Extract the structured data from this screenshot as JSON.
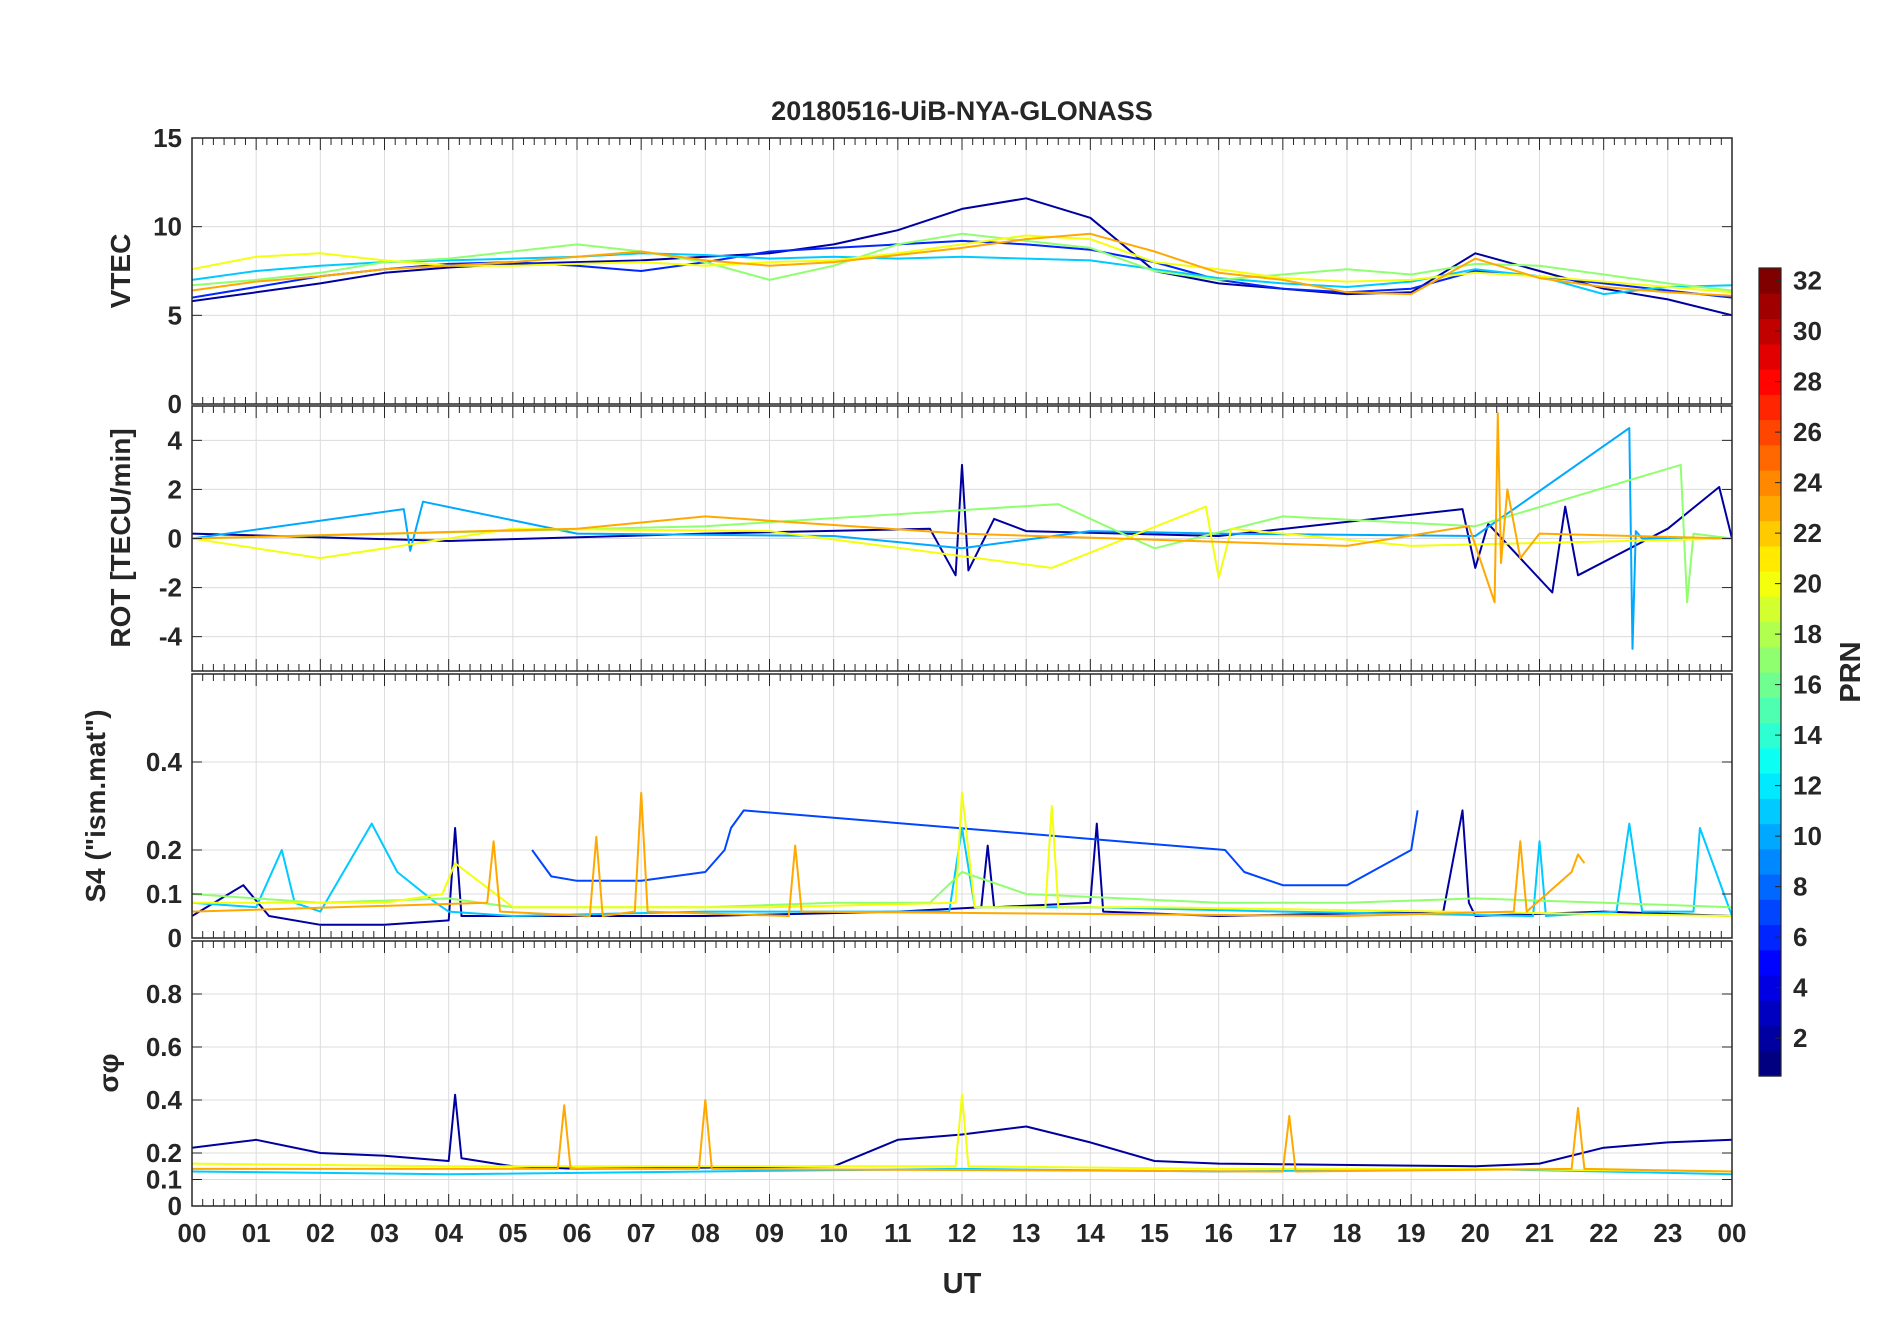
{
  "figure_title": "20180516-UiB-NYA-GLONASS",
  "chart_data": {
    "type": "line",
    "title": "20180516-UiB-NYA-GLONASS",
    "xlabel": "UT",
    "x_tick_labels": [
      "00",
      "01",
      "02",
      "03",
      "04",
      "05",
      "06",
      "07",
      "08",
      "09",
      "10",
      "11",
      "12",
      "13",
      "14",
      "15",
      "16",
      "17",
      "18",
      "19",
      "20",
      "21",
      "22",
      "23",
      "00"
    ],
    "xlim": [
      0,
      24
    ],
    "panels": [
      {
        "id": "vtec",
        "ylabel": "VTEC",
        "ylim": [
          0,
          15
        ],
        "yticks": [
          0,
          5,
          10,
          15
        ],
        "ytick_labels": [
          "0",
          "5",
          "10",
          "15"
        ],
        "series": [
          {
            "prn": 2,
            "x": [
              0,
              1,
              2,
              3,
              4,
              5,
              6,
              7,
              8,
              9,
              10,
              11,
              12,
              13,
              14,
              15,
              16,
              17,
              18,
              19,
              20,
              21,
              22,
              23,
              24
            ],
            "y": [
              5.8,
              6.3,
              6.8,
              7.4,
              7.7,
              7.9,
              8.0,
              8.1,
              8.3,
              8.5,
              9.0,
              9.8,
              11.0,
              11.6,
              10.5,
              7.5,
              6.8,
              6.5,
              6.2,
              6.3,
              8.5,
              7.5,
              6.5,
              5.9,
              5.0
            ]
          },
          {
            "prn": 6,
            "x": [
              0,
              1,
              2,
              3,
              4,
              5,
              6,
              7,
              8,
              9,
              10,
              11,
              12,
              13,
              14,
              15,
              16,
              17,
              18,
              19,
              20,
              21,
              22,
              23,
              24
            ],
            "y": [
              6.0,
              6.6,
              7.2,
              7.6,
              7.9,
              8.0,
              7.8,
              7.5,
              8.0,
              8.6,
              8.8,
              9.0,
              9.2,
              9.0,
              8.7,
              8.0,
              7.0,
              6.5,
              6.3,
              6.5,
              7.5,
              7.2,
              6.8,
              6.4,
              6.0
            ]
          },
          {
            "prn": 11,
            "x": [
              0,
              1,
              2,
              3,
              4,
              5,
              6,
              7,
              8,
              9,
              10,
              11,
              12,
              13,
              14,
              15,
              16,
              17,
              18,
              19,
              20,
              21,
              22,
              23,
              24
            ],
            "y": [
              7.0,
              7.5,
              7.8,
              8.0,
              8.1,
              8.2,
              8.3,
              8.5,
              8.4,
              8.2,
              8.3,
              8.2,
              8.3,
              8.2,
              8.1,
              7.6,
              7.1,
              6.8,
              6.6,
              6.9,
              7.6,
              7.2,
              6.2,
              6.6,
              6.7
            ]
          },
          {
            "prn": 17,
            "x": [
              0,
              1,
              2,
              3,
              4,
              5,
              6,
              7,
              8,
              9,
              10,
              11,
              12,
              13,
              14,
              15,
              16,
              17,
              18,
              19,
              20,
              21,
              22,
              23,
              24
            ],
            "y": [
              6.7,
              7.0,
              7.4,
              8.0,
              8.2,
              8.6,
              9.0,
              8.6,
              8.0,
              7.0,
              7.8,
              9.0,
              9.6,
              9.2,
              8.8,
              7.5,
              7.0,
              7.3,
              7.6,
              7.3,
              7.9,
              7.8,
              7.3,
              6.8,
              6.4
            ]
          },
          {
            "prn": 20,
            "x": [
              0,
              1,
              2,
              3,
              4,
              5,
              6,
              7,
              8,
              9,
              10,
              11,
              12,
              13,
              14,
              15,
              16,
              17,
              18,
              19,
              20,
              21,
              22,
              23,
              24
            ],
            "y": [
              7.6,
              8.3,
              8.5,
              8.1,
              7.8,
              7.8,
              7.9,
              8.0,
              7.8,
              8.0,
              8.1,
              8.5,
              9.0,
              9.5,
              9.3,
              8.0,
              7.6,
              7.1,
              6.9,
              7.0,
              7.4,
              7.2,
              6.9,
              6.6,
              6.3
            ]
          },
          {
            "prn": 23,
            "x": [
              0,
              1,
              2,
              3,
              4,
              5,
              6,
              7,
              8,
              9,
              10,
              11,
              12,
              13,
              14,
              15,
              16,
              17,
              18,
              19,
              20,
              21,
              22,
              23,
              24
            ],
            "y": [
              6.4,
              6.9,
              7.2,
              7.6,
              7.8,
              8.0,
              8.3,
              8.6,
              8.1,
              7.8,
              8.0,
              8.4,
              8.8,
              9.3,
              9.6,
              8.6,
              7.4,
              7.0,
              6.3,
              6.2,
              8.2,
              7.1,
              6.6,
              6.3,
              6.1
            ]
          }
        ]
      },
      {
        "id": "rot",
        "ylabel": "ROT [TECU/min]",
        "ylim": [
          -5.4,
          5.4
        ],
        "yticks": [
          -4,
          -2,
          0,
          2,
          4
        ],
        "ytick_labels": [
          "-4",
          "-2",
          "0",
          "2",
          "4"
        ],
        "series": [
          {
            "prn": 2,
            "x": [
              0,
              4,
              8,
              11.5,
              11.9,
              12.0,
              12.1,
              12.5,
              13,
              16,
              19.8,
              20.0,
              20.2,
              21.2,
              21.4,
              21.6,
              23,
              23.8,
              24
            ],
            "y": [
              0.2,
              -0.1,
              0.2,
              0.4,
              -1.5,
              3.0,
              -1.3,
              0.8,
              0.3,
              0.1,
              1.2,
              -1.2,
              0.6,
              -2.2,
              1.3,
              -1.5,
              0.4,
              2.1,
              0
            ]
          },
          {
            "prn": 10,
            "x": [
              0,
              3.3,
              3.4,
              3.6,
              6,
              10,
              12,
              14,
              16,
              20,
              22.4,
              22.45,
              22.5,
              22.6,
              24
            ],
            "y": [
              0,
              1.2,
              -0.5,
              1.5,
              0.2,
              0.1,
              -0.4,
              0.3,
              0.2,
              0.1,
              4.5,
              -4.5,
              0.3,
              0,
              0
            ]
          },
          {
            "prn": 17,
            "x": [
              0,
              8,
              13.5,
              15,
              17,
              20,
              23.2,
              23.3,
              23.4,
              24
            ],
            "y": [
              0,
              0.5,
              1.4,
              -0.4,
              0.9,
              0.5,
              3.0,
              -2.6,
              0.2,
              0
            ]
          },
          {
            "prn": 20,
            "x": [
              0,
              2,
              5,
              9,
              13.4,
              15.8,
              16.0,
              16.2,
              19,
              24
            ],
            "y": [
              0,
              -0.8,
              0.4,
              0.3,
              -1.2,
              1.3,
              -1.6,
              0.4,
              -0.3,
              0
            ]
          },
          {
            "prn": 23,
            "x": [
              0,
              6,
              8,
              12,
              18,
              19.9,
              20.3,
              20.35,
              20.4,
              20.5,
              20.7,
              21,
              24
            ],
            "y": [
              0,
              0.4,
              0.9,
              0.2,
              -0.3,
              0.5,
              -2.6,
              5.1,
              -1.0,
              2.0,
              -0.8,
              0.2,
              0
            ]
          }
        ]
      },
      {
        "id": "s4",
        "ylabel": "S4 (\"ism.mat\")",
        "ylim": [
          0,
          0.6
        ],
        "yticks": [
          0,
          0.1,
          0.2,
          0.4
        ],
        "ytick_labels": [
          "0",
          "0.1",
          "0.2",
          "0.4"
        ],
        "series": [
          {
            "prn": 2,
            "x": [
              0,
              0.8,
              1.2,
              2,
              3,
              4,
              4.1,
              4.2,
              5,
              8,
              11,
              12.3,
              12.4,
              12.5,
              14,
              14.1,
              14.2,
              16,
              19.5,
              19.8,
              19.9,
              20,
              22,
              24
            ],
            "y": [
              0.05,
              0.12,
              0.05,
              0.03,
              0.03,
              0.04,
              0.25,
              0.05,
              0.05,
              0.05,
              0.06,
              0.07,
              0.21,
              0.07,
              0.08,
              0.26,
              0.06,
              0.05,
              0.06,
              0.29,
              0.08,
              0.05,
              0.06,
              0.05
            ]
          },
          {
            "prn": 7,
            "x": [
              5.3,
              5.6,
              6,
              7,
              8,
              8.3,
              8.4,
              8.6,
              16.1,
              16.4,
              17,
              18,
              18.5,
              19,
              19.1
            ],
            "y": [
              0.2,
              0.14,
              0.13,
              0.13,
              0.15,
              0.2,
              0.25,
              0.29,
              0.2,
              0.15,
              0.12,
              0.12,
              0.16,
              0.2,
              0.29
            ]
          },
          {
            "prn": 11,
            "x": [
              0,
              1,
              1.4,
              1.6,
              2,
              2.8,
              3.2,
              3.8,
              4,
              5,
              8,
              11.8,
              12,
              12.2,
              14,
              17,
              20.9,
              21,
              21.1,
              22.2,
              22.4,
              22.6,
              23.4,
              23.5,
              24
            ],
            "y": [
              0.08,
              0.07,
              0.2,
              0.08,
              0.06,
              0.26,
              0.15,
              0.08,
              0.06,
              0.05,
              0.06,
              0.06,
              0.25,
              0.07,
              0.07,
              0.06,
              0.05,
              0.22,
              0.05,
              0.06,
              0.26,
              0.06,
              0.06,
              0.25,
              0.05
            ]
          },
          {
            "prn": 17,
            "x": [
              0,
              2,
              4,
              5,
              8,
              10,
              11.5,
              12,
              13,
              16,
              18,
              20,
              22,
              24
            ],
            "y": [
              0.1,
              0.08,
              0.09,
              0.07,
              0.07,
              0.08,
              0.08,
              0.15,
              0.1,
              0.08,
              0.08,
              0.09,
              0.08,
              0.07
            ]
          },
          {
            "prn": 20,
            "x": [
              0,
              3,
              3.9,
              4.1,
              5,
              9,
              11.9,
              12.0,
              12.2,
              13.3,
              13.4,
              13.5,
              15,
              24
            ],
            "y": [
              0.08,
              0.08,
              0.1,
              0.17,
              0.07,
              0.07,
              0.08,
              0.33,
              0.07,
              0.07,
              0.3,
              0.07,
              0.07,
              0.05
            ]
          },
          {
            "prn": 23,
            "x": [
              0,
              4.6,
              4.7,
              4.8,
              6.2,
              6.3,
              6.4,
              6.9,
              7.0,
              7.1,
              9.3,
              9.4,
              9.5,
              18,
              20.6,
              20.7,
              20.8,
              21.5,
              21.6,
              21.7
            ],
            "y": [
              0.06,
              0.08,
              0.22,
              0.06,
              0.05,
              0.23,
              0.05,
              0.06,
              0.33,
              0.06,
              0.05,
              0.21,
              0.06,
              0.05,
              0.06,
              0.22,
              0.06,
              0.15,
              0.19,
              0.17
            ]
          }
        ]
      },
      {
        "id": "sigma_phi",
        "ylabel": "σφ",
        "ylim": [
          0,
          1
        ],
        "yticks": [
          0,
          0.1,
          0.2,
          0.4,
          0.6,
          0.8
        ],
        "ytick_labels": [
          "0",
          "0.1",
          "0.2",
          "0.4",
          "0.6",
          "0.8"
        ],
        "series": [
          {
            "prn": 2,
            "x": [
              0,
              1,
              2,
              3,
              4,
              4.1,
              4.2,
              5,
              6,
              10,
              11,
              12,
              13,
              14,
              15,
              16,
              20,
              21,
              22,
              23,
              24
            ],
            "y": [
              0.22,
              0.25,
              0.2,
              0.19,
              0.17,
              0.42,
              0.18,
              0.15,
              0.14,
              0.15,
              0.25,
              0.27,
              0.3,
              0.24,
              0.17,
              0.16,
              0.15,
              0.16,
              0.22,
              0.24,
              0.25
            ]
          },
          {
            "prn": 11,
            "x": [
              0,
              4,
              8,
              12,
              16,
              20,
              24
            ],
            "y": [
              0.13,
              0.12,
              0.13,
              0.14,
              0.13,
              0.14,
              0.12
            ]
          },
          {
            "prn": 20,
            "x": [
              0,
              4,
              8,
              11.9,
              12.0,
              12.1,
              16,
              20,
              24
            ],
            "y": [
              0.16,
              0.15,
              0.15,
              0.15,
              0.42,
              0.15,
              0.14,
              0.14,
              0.13
            ]
          },
          {
            "prn": 23,
            "x": [
              0,
              5.7,
              5.8,
              5.9,
              7.9,
              8.0,
              8.1,
              17.0,
              17.1,
              17.2,
              21.5,
              21.6,
              21.7,
              24
            ],
            "y": [
              0.14,
              0.14,
              0.38,
              0.14,
              0.14,
              0.4,
              0.14,
              0.13,
              0.34,
              0.13,
              0.14,
              0.37,
              0.14,
              0.13
            ]
          }
        ]
      }
    ],
    "colorbar": {
      "label": "PRN",
      "colormap": "jet",
      "range": [
        1,
        32
      ],
      "ticks": [
        2,
        4,
        6,
        8,
        10,
        12,
        14,
        16,
        18,
        20,
        22,
        24,
        26,
        28,
        30,
        32
      ],
      "tick_labels": [
        "2",
        "4",
        "6",
        "8",
        "10",
        "12",
        "14",
        "16",
        "18",
        "20",
        "22",
        "24",
        "26",
        "28",
        "30",
        "32"
      ],
      "location": "right"
    }
  }
}
